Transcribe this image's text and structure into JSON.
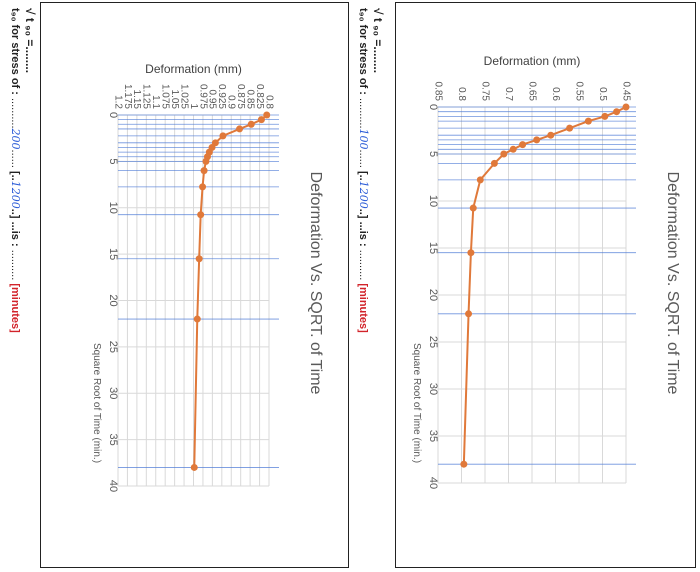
{
  "chart_data": [
    {
      "type": "line",
      "title": "Deformation Vs. SQRT. of Time",
      "xlabel": "Square Root of Time (min.)",
      "ylabel": "Deformation (mm)",
      "xlim": [
        0,
        40
      ],
      "ylim": [
        0.8,
        1.2
      ],
      "x_ticks": [
        "0",
        "5",
        "10",
        "15",
        "20",
        "25",
        "30",
        "35",
        "40"
      ],
      "y_ticks": [
        "0.8",
        "0.825",
        "0.85",
        "0.875",
        "0.9",
        "0.925",
        "0.95",
        "0.975",
        "1",
        "1.025",
        "1.05",
        "1.075",
        "1.1",
        "1.125",
        "1.15",
        "1.175",
        "1.2"
      ],
      "grid": true,
      "series_color": "#e0793a",
      "series": [
        {
          "x": [
            0,
            0.5,
            1,
            1.5,
            2.25,
            3,
            3.5,
            4,
            4.5,
            5,
            6,
            7.75,
            10.75,
            15.5,
            22,
            38
          ],
          "y": [
            0.806,
            0.82,
            0.847,
            0.878,
            0.922,
            0.942,
            0.951,
            0.958,
            0.963,
            0.967,
            0.972,
            0.976,
            0.981,
            0.985,
            0.99,
            0.998
          ]
        }
      ],
      "annotations": {
        "stress_line": "t₉₀ for stress of :",
        "stress_value": "200",
        "bracket_value": "1200",
        "is_text": "is :",
        "dots": "..........",
        "minutes": "[minutes]",
        "sqrt_label": "√ t ₉₀ =",
        "sqrt_dots": "........"
      }
    },
    {
      "type": "line",
      "title": "Deformation Vs. SQRT. of Time",
      "xlabel": "Square Root of Time (min.)",
      "ylabel": "Deformation (mm)",
      "xlim": [
        0,
        40
      ],
      "ylim": [
        0.45,
        0.85
      ],
      "x_ticks": [
        "0",
        "5",
        "10",
        "15",
        "20",
        "25",
        "30",
        "35",
        "40"
      ],
      "y_ticks": [
        "0.45",
        "0.5",
        "0.55",
        "0.6",
        "0.65",
        "0.7",
        "0.75",
        "0.8",
        "0.85"
      ],
      "grid": true,
      "series_color": "#e0793a",
      "series": [
        {
          "x": [
            0,
            0.5,
            1,
            1.5,
            2.25,
            3,
            3.5,
            4,
            4.5,
            5,
            6,
            7.75,
            10.75,
            15.5,
            22,
            38
          ],
          "y": [
            0.45,
            0.47,
            0.495,
            0.53,
            0.57,
            0.61,
            0.64,
            0.67,
            0.69,
            0.71,
            0.73,
            0.76,
            0.775,
            0.78,
            0.785,
            0.795
          ]
        }
      ],
      "annotations": {
        "stress_line": "t₉₀ for stress of :",
        "stress_value": "100",
        "bracket_value": "1200",
        "is_text": "is :",
        "dots": "..........",
        "minutes": "[minutes]",
        "sqrt_label": "√ t ₉₀ =",
        "sqrt_dots": "........"
      }
    }
  ]
}
